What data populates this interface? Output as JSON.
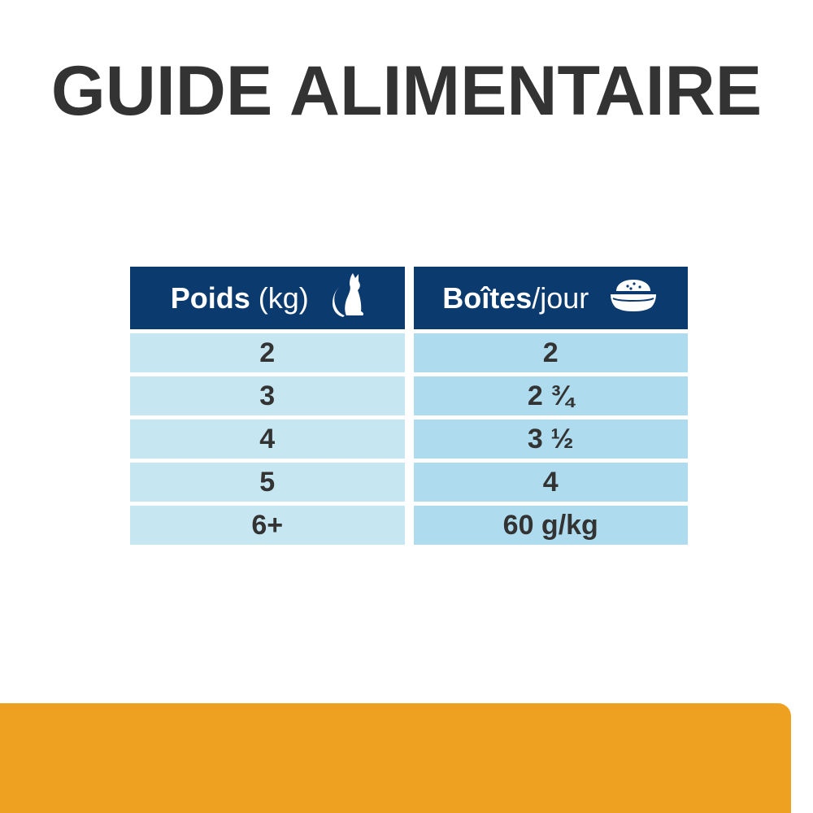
{
  "title": "GUIDE ALIMENTAIRE",
  "table": {
    "headers": [
      {
        "bold": "Poids",
        "rest": " (kg)",
        "icon": "cat-icon"
      },
      {
        "bold": "Boîtes",
        "rest": "/jour",
        "icon": "food-bowl-icon"
      }
    ],
    "rows": [
      [
        "2",
        "2"
      ],
      [
        "3",
        "2 ¾"
      ],
      [
        "4",
        "3 ½"
      ],
      [
        "5",
        "4"
      ],
      [
        "6+",
        "60 g/kg"
      ]
    ]
  },
  "colors": {
    "title": "#333333",
    "header_bg": "#0b3a6f",
    "weight_cell_bg": "#c6e6f2",
    "cans_cell_bg": "#aedcee",
    "bottom_band": "#eea121"
  }
}
